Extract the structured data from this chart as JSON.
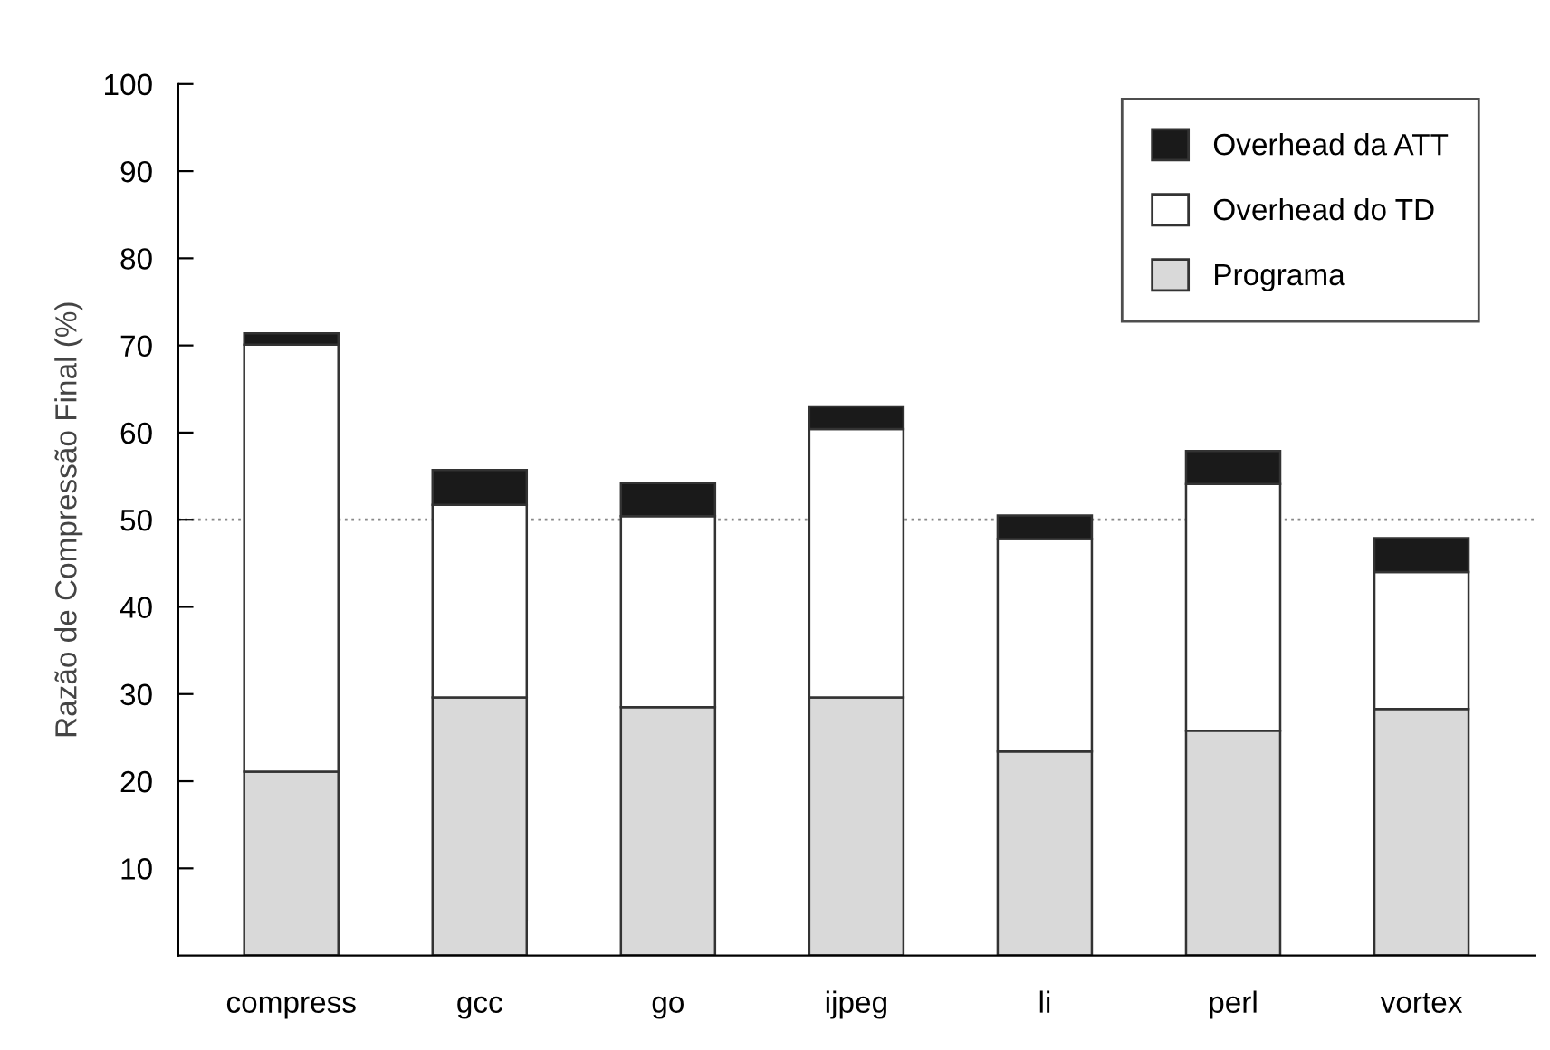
{
  "chart_data": {
    "type": "bar",
    "stacked": true,
    "ylabel": "Razão de Compressão Final (%)",
    "categories": [
      "compress",
      "gcc",
      "go",
      "ijpeg",
      "li",
      "perl",
      "vortex"
    ],
    "series": [
      {
        "name": "Programa",
        "color": "#d9d9d9",
        "values": [
          21.1,
          29.6,
          28.5,
          29.6,
          23.4,
          25.8,
          28.3
        ]
      },
      {
        "name": "Overhead do TD",
        "color": "#ffffff",
        "values": [
          49.0,
          22.1,
          21.9,
          30.8,
          24.4,
          28.3,
          15.7
        ]
      },
      {
        "name": "Overhead da ATT",
        "color": "#1a1a1a",
        "values": [
          1.3,
          4.0,
          3.8,
          2.6,
          2.7,
          3.8,
          3.9
        ]
      }
    ],
    "ylim": [
      0,
      100
    ],
    "yticks": [
      10,
      20,
      30,
      40,
      50,
      60,
      70,
      80,
      90,
      100
    ],
    "ref_lines": [
      {
        "axis": "y",
        "value": 50,
        "color": "#888888",
        "line_style": "dotted"
      }
    ],
    "grid": false,
    "legend": "top right"
  }
}
